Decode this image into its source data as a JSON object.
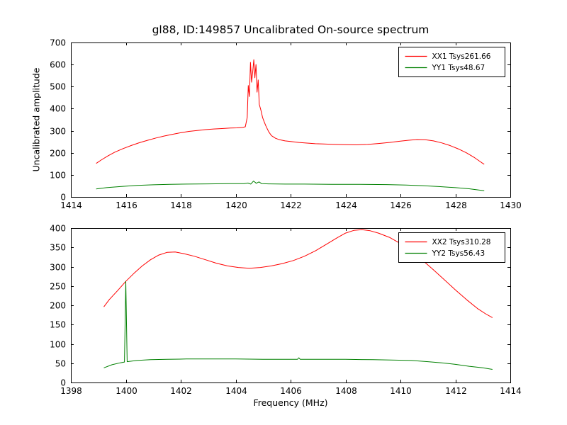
{
  "figure": {
    "title": "gl88, ID:149857 Uncalibrated On-source spectrum",
    "ylabel": "Uncalibrated amplitude",
    "xlabel": "Frequency (MHz)",
    "background": "#ffffff",
    "axis_color": "#000000"
  },
  "chart_data": [
    {
      "type": "line",
      "subplot": "top",
      "xlim": [
        1414,
        1430
      ],
      "ylim": [
        0,
        700
      ],
      "x_ticks": [
        1414,
        1416,
        1418,
        1420,
        1422,
        1424,
        1426,
        1428,
        1430
      ],
      "y_ticks": [
        0,
        100,
        200,
        300,
        400,
        500,
        600,
        700
      ],
      "grid": false,
      "legend_position": "upper right",
      "series": [
        {
          "name": "XX1 Tsys261.66",
          "color": "#ff0000",
          "points": [
            [
              1414.92,
              152
            ],
            [
              1415.1,
              167
            ],
            [
              1415.35,
              186
            ],
            [
              1415.6,
              203
            ],
            [
              1415.9,
              219
            ],
            [
              1416.2,
              233
            ],
            [
              1416.5,
              246
            ],
            [
              1416.8,
              257
            ],
            [
              1417.1,
              267
            ],
            [
              1417.4,
              276
            ],
            [
              1417.7,
              284
            ],
            [
              1418.0,
              291
            ],
            [
              1418.3,
              297
            ],
            [
              1418.6,
              301
            ],
            [
              1418.9,
              305
            ],
            [
              1419.2,
              308
            ],
            [
              1419.5,
              310
            ],
            [
              1419.8,
              312
            ],
            [
              1420.05,
              313
            ],
            [
              1420.25,
              315
            ],
            [
              1420.35,
              318
            ],
            [
              1420.42,
              360
            ],
            [
              1420.46,
              505
            ],
            [
              1420.5,
              455
            ],
            [
              1420.54,
              610
            ],
            [
              1420.58,
              520
            ],
            [
              1420.62,
              565
            ],
            [
              1420.66,
              622
            ],
            [
              1420.7,
              540
            ],
            [
              1420.74,
              600
            ],
            [
              1420.78,
              475
            ],
            [
              1420.82,
              530
            ],
            [
              1420.86,
              420
            ],
            [
              1420.92,
              392
            ],
            [
              1420.98,
              360
            ],
            [
              1421.04,
              340
            ],
            [
              1421.1,
              322
            ],
            [
              1421.2,
              296
            ],
            [
              1421.3,
              278
            ],
            [
              1421.45,
              266
            ],
            [
              1421.6,
              259
            ],
            [
              1421.8,
              254
            ],
            [
              1422.0,
              251
            ],
            [
              1422.3,
              247
            ],
            [
              1422.6,
              244
            ],
            [
              1422.9,
              241
            ],
            [
              1423.2,
              240
            ],
            [
              1423.6,
              238
            ],
            [
              1424.0,
              237
            ],
            [
              1424.4,
              236
            ],
            [
              1424.8,
              238
            ],
            [
              1425.2,
              242
            ],
            [
              1425.6,
              247
            ],
            [
              1426.0,
              253
            ],
            [
              1426.3,
              257
            ],
            [
              1426.6,
              260
            ],
            [
              1426.9,
              259
            ],
            [
              1427.2,
              254
            ],
            [
              1427.5,
              245
            ],
            [
              1427.8,
              233
            ],
            [
              1428.1,
              218
            ],
            [
              1428.4,
              200
            ],
            [
              1428.7,
              178
            ],
            [
              1428.95,
              156
            ],
            [
              1429.05,
              148
            ]
          ]
        },
        {
          "name": "YY1 Tsys48.67",
          "color": "#008000",
          "points": [
            [
              1414.92,
              36
            ],
            [
              1415.3,
              42
            ],
            [
              1415.8,
              47
            ],
            [
              1416.4,
              52
            ],
            [
              1417.0,
              55
            ],
            [
              1417.6,
              57
            ],
            [
              1418.2,
              58
            ],
            [
              1419.0,
              59
            ],
            [
              1419.8,
              60
            ],
            [
              1420.3,
              60
            ],
            [
              1420.45,
              63
            ],
            [
              1420.55,
              58
            ],
            [
              1420.65,
              72
            ],
            [
              1420.75,
              62
            ],
            [
              1420.85,
              68
            ],
            [
              1420.95,
              60
            ],
            [
              1421.2,
              59
            ],
            [
              1421.8,
              58
            ],
            [
              1422.5,
              58
            ],
            [
              1423.5,
              57
            ],
            [
              1424.5,
              57
            ],
            [
              1425.5,
              56
            ],
            [
              1426.2,
              54
            ],
            [
              1426.8,
              51
            ],
            [
              1427.4,
              47
            ],
            [
              1428.0,
              42
            ],
            [
              1428.5,
              37
            ],
            [
              1429.05,
              28
            ]
          ]
        }
      ]
    },
    {
      "type": "line",
      "subplot": "bottom",
      "xlim": [
        1398,
        1414
      ],
      "ylim": [
        0,
        400
      ],
      "x_ticks": [
        1398,
        1400,
        1402,
        1404,
        1406,
        1408,
        1410,
        1412,
        1414
      ],
      "y_ticks": [
        0,
        50,
        100,
        150,
        200,
        250,
        300,
        350,
        400
      ],
      "grid": false,
      "legend_position": "upper right",
      "series": [
        {
          "name": "XX2 Tsys310.28",
          "color": "#ff0000",
          "points": [
            [
              1399.2,
              196
            ],
            [
              1399.4,
              215
            ],
            [
              1399.7,
              238
            ],
            [
              1400.0,
              262
            ],
            [
              1400.3,
              283
            ],
            [
              1400.6,
              302
            ],
            [
              1400.9,
              318
            ],
            [
              1401.2,
              330
            ],
            [
              1401.5,
              337
            ],
            [
              1401.8,
              338
            ],
            [
              1402.1,
              334
            ],
            [
              1402.5,
              327
            ],
            [
              1402.9,
              318
            ],
            [
              1403.3,
              309
            ],
            [
              1403.7,
              302
            ],
            [
              1404.1,
              298
            ],
            [
              1404.5,
              296
            ],
            [
              1404.9,
              298
            ],
            [
              1405.3,
              302
            ],
            [
              1405.7,
              308
            ],
            [
              1406.1,
              316
            ],
            [
              1406.5,
              327
            ],
            [
              1406.9,
              341
            ],
            [
              1407.3,
              358
            ],
            [
              1407.7,
              375
            ],
            [
              1408.0,
              387
            ],
            [
              1408.3,
              394
            ],
            [
              1408.6,
              396
            ],
            [
              1408.9,
              393
            ],
            [
              1409.2,
              387
            ],
            [
              1409.6,
              376
            ],
            [
              1410.0,
              360
            ],
            [
              1410.4,
              340
            ],
            [
              1410.8,
              317
            ],
            [
              1411.2,
              292
            ],
            [
              1411.6,
              266
            ],
            [
              1412.0,
              240
            ],
            [
              1412.4,
              215
            ],
            [
              1412.8,
              192
            ],
            [
              1413.1,
              178
            ],
            [
              1413.35,
              168
            ]
          ]
        },
        {
          "name": "YY2 Tsys56.43",
          "color": "#008000",
          "points": [
            [
              1399.2,
              38
            ],
            [
              1399.5,
              46
            ],
            [
              1399.8,
              51
            ],
            [
              1399.95,
              53
            ],
            [
              1400.0,
              262
            ],
            [
              1400.05,
              54
            ],
            [
              1400.4,
              57
            ],
            [
              1400.9,
              59
            ],
            [
              1401.5,
              60
            ],
            [
              1402.2,
              61
            ],
            [
              1403.0,
              61
            ],
            [
              1404.0,
              61
            ],
            [
              1405.0,
              60
            ],
            [
              1406.0,
              60
            ],
            [
              1406.25,
              60
            ],
            [
              1406.3,
              64
            ],
            [
              1406.35,
              60
            ],
            [
              1407.0,
              60
            ],
            [
              1408.0,
              60
            ],
            [
              1409.0,
              59
            ],
            [
              1409.8,
              58
            ],
            [
              1410.4,
              57
            ],
            [
              1411.0,
              54
            ],
            [
              1411.5,
              51
            ],
            [
              1412.0,
              47
            ],
            [
              1412.5,
              42
            ],
            [
              1413.0,
              38
            ],
            [
              1413.35,
              34
            ]
          ]
        }
      ]
    }
  ]
}
